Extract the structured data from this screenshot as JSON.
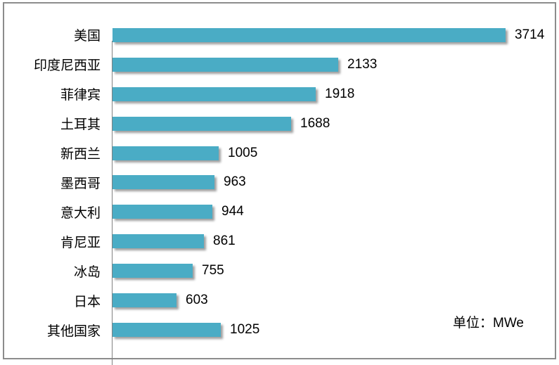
{
  "chart_data": {
    "type": "bar",
    "orientation": "horizontal",
    "title": "",
    "xlabel": "",
    "ylabel": "",
    "categories": [
      "美国",
      "印度尼西亚",
      "菲律宾",
      "土耳其",
      "新西兰",
      "墨西哥",
      "意大利",
      "肯尼亚",
      "冰岛",
      "日本",
      "其他国家"
    ],
    "values": [
      3714,
      2133,
      1918,
      1688,
      1005,
      963,
      944,
      861,
      755,
      603,
      1025
    ],
    "xlim": [
      0,
      4000
    ],
    "data_labels": true,
    "gridlines": false,
    "legend": false,
    "unit_label": "单位：MWe",
    "colors": {
      "bar": "#4aacc5",
      "axis_line": "#808080",
      "frame_border": "#8c8c8c",
      "text": "#000000",
      "background": "#ffffff"
    }
  }
}
